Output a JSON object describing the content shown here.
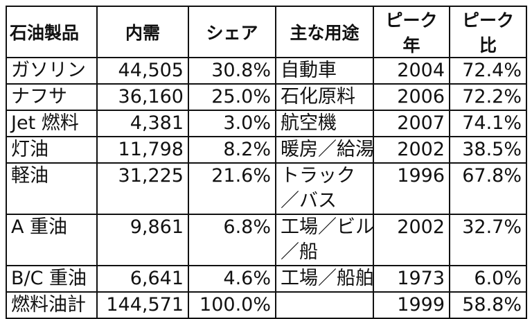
{
  "headers": [
    "石油製品",
    "内需",
    "シェア",
    "主な用途",
    "ピーク年",
    "ピーク比"
  ],
  "rows": [
    {
      "product": "ガソリン",
      "demand": "44,505",
      "share": "30.8%",
      "use": [
        "自動車"
      ],
      "peak_year": "2004",
      "peak_ratio": "72.4%"
    },
    {
      "product": "ナフサ",
      "demand": "36,160",
      "share": "25.0%",
      "use": [
        "石化原料"
      ],
      "peak_year": "2006",
      "peak_ratio": "72.2%"
    },
    {
      "product": "Jet 燃料",
      "demand": "4,381",
      "share": "3.0%",
      "use": [
        "航空機"
      ],
      "peak_year": "2007",
      "peak_ratio": "74.1%"
    },
    {
      "product": "灯油",
      "demand": "11,798",
      "share": "8.2%",
      "use": [
        "暖房／給湯"
      ],
      "peak_year": "2002",
      "peak_ratio": "38.5%"
    },
    {
      "product": "軽油",
      "demand": "31,225",
      "share": "21.6%",
      "use": [
        "トラック",
        "／バス"
      ],
      "peak_year": "1996",
      "peak_ratio": "67.8%"
    },
    {
      "product": "A 重油",
      "demand": "9,861",
      "share": "6.8%",
      "use": [
        "工場／ビル",
        "／船"
      ],
      "peak_year": "2002",
      "peak_ratio": "32.7%"
    },
    {
      "product": "B/C 重油",
      "demand": "6,641",
      "share": "4.6%",
      "use": [
        "工場／船舶"
      ],
      "peak_year": "1973",
      "peak_ratio": "6.0%"
    },
    {
      "product": "燃料油計",
      "demand": "144,571",
      "share": "100.0%",
      "use": [
        ""
      ],
      "peak_year": "1999",
      "peak_ratio": "58.8%"
    }
  ]
}
